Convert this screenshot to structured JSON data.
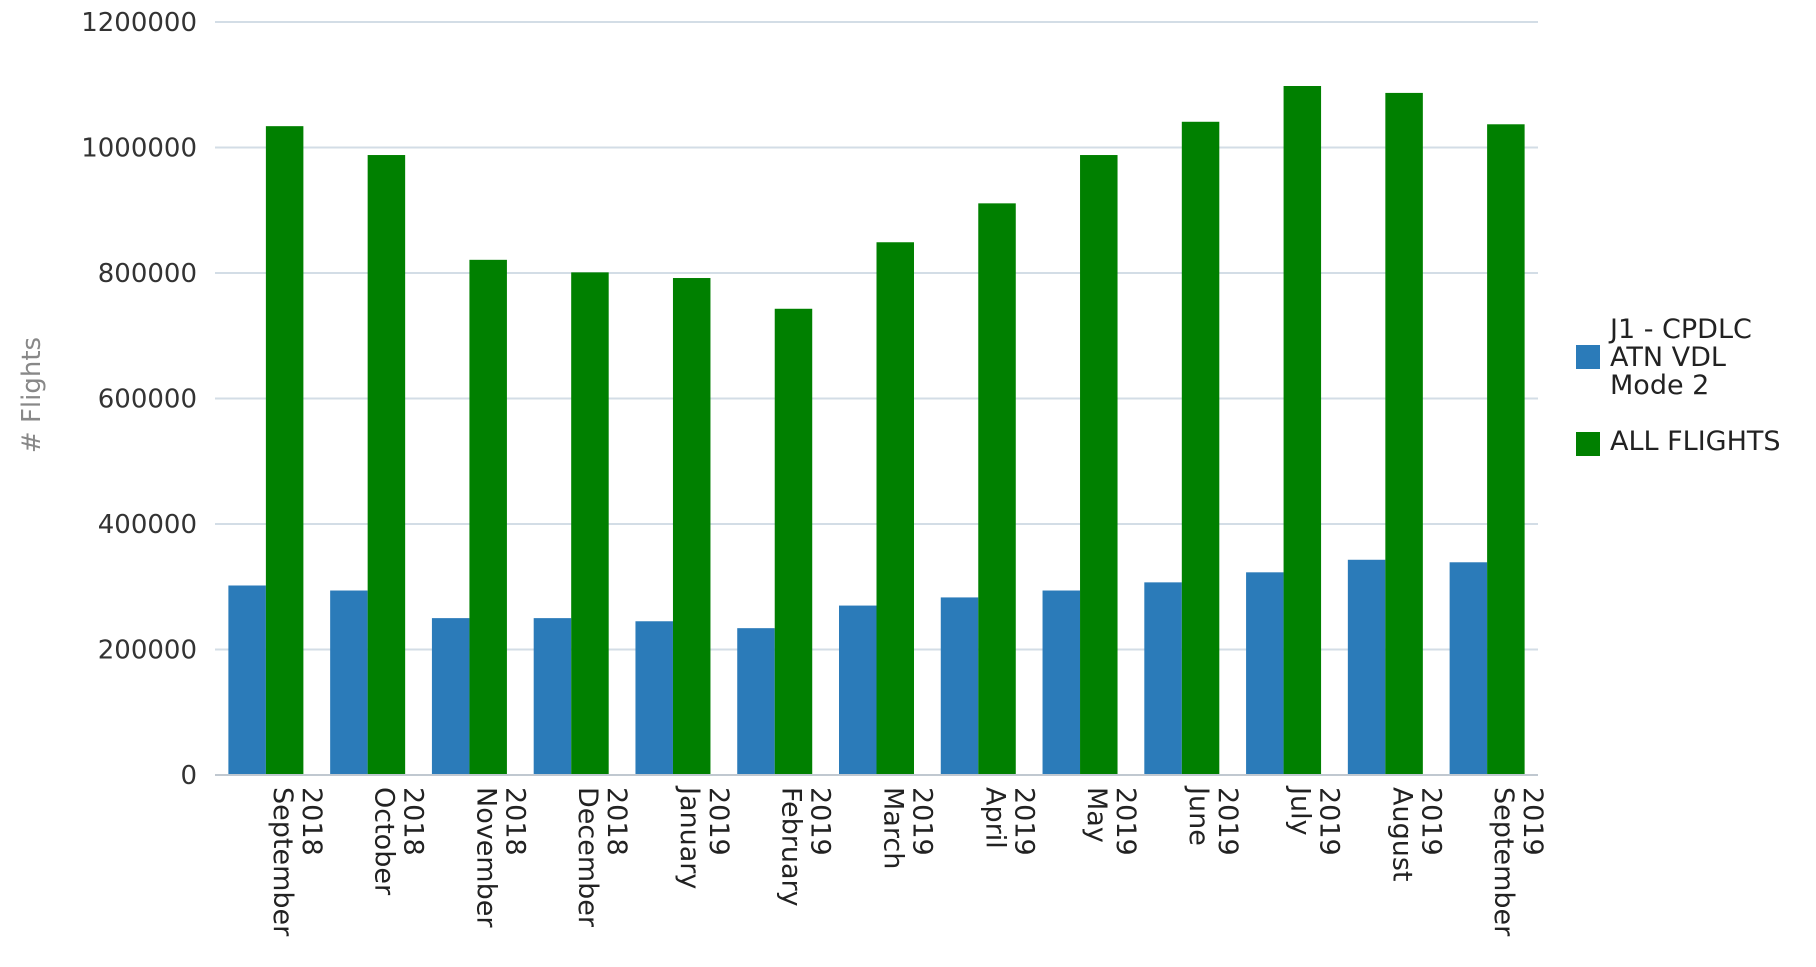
{
  "chart_data": {
    "type": "bar",
    "title": "",
    "xlabel": "",
    "ylabel": "# Flights",
    "ylim": [
      0,
      1200000
    ],
    "yticks": [
      0,
      200000,
      400000,
      600000,
      800000,
      1000000,
      1200000
    ],
    "grid": true,
    "legend_position": "right",
    "categories": [
      [
        "September",
        "2018"
      ],
      [
        "October",
        "2018"
      ],
      [
        "November",
        "2018"
      ],
      [
        "December",
        "2018"
      ],
      [
        "January",
        "2019"
      ],
      [
        "February",
        "2019"
      ],
      [
        "March",
        "2019"
      ],
      [
        "April",
        "2019"
      ],
      [
        "May",
        "2019"
      ],
      [
        "June",
        "2019"
      ],
      [
        "July",
        "2019"
      ],
      [
        "August",
        "2019"
      ],
      [
        "September",
        "2019"
      ]
    ],
    "series": [
      {
        "name": [
          "J1 - CPDLC",
          "ATN VDL",
          "Mode 2"
        ],
        "color": "#2b7bb9",
        "values": [
          302000,
          294000,
          250000,
          250000,
          245000,
          234000,
          270000,
          283000,
          294000,
          307000,
          323000,
          343000,
          339000
        ]
      },
      {
        "name": [
          "ALL FLIGHTS"
        ],
        "color": "#008000",
        "values": [
          1034000,
          988000,
          821000,
          801000,
          792000,
          743000,
          849000,
          911000,
          988000,
          1041000,
          1098000,
          1087000,
          1037000
        ]
      }
    ]
  }
}
